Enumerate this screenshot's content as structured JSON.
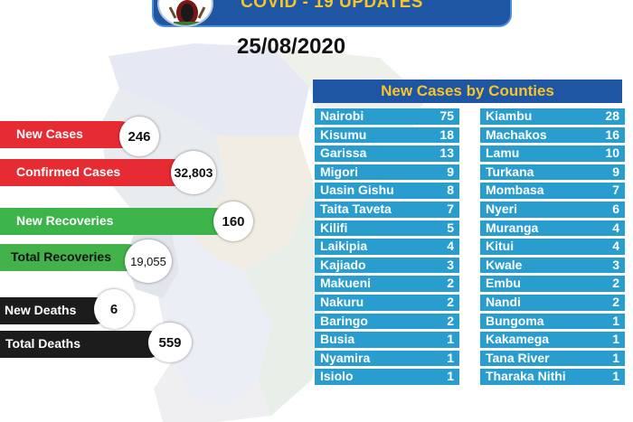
{
  "header": {
    "title": "COVID - 19 UPDATES",
    "date": "25/08/2020"
  },
  "stats": [
    {
      "label": "New Cases",
      "value": "246"
    },
    {
      "label": "Confirmed Cases",
      "value": "32,803"
    },
    {
      "label": "New Recoveries",
      "value": "160"
    },
    {
      "label": "Total Recoveries",
      "value": "19,055"
    },
    {
      "label": "New Deaths",
      "value": "6"
    },
    {
      "label": "Total Deaths",
      "value": "559"
    }
  ],
  "counties": {
    "title": "New Cases by Counties",
    "left": [
      {
        "name": "Nairobi",
        "cases": "75"
      },
      {
        "name": "Kisumu",
        "cases": "18"
      },
      {
        "name": "Garissa",
        "cases": "13"
      },
      {
        "name": "Migori",
        "cases": "9"
      },
      {
        "name": "Uasin Gishu",
        "cases": "8"
      },
      {
        "name": "Taita Taveta",
        "cases": "7"
      },
      {
        "name": "Kilifi",
        "cases": "5"
      },
      {
        "name": "Laikipia",
        "cases": "4"
      },
      {
        "name": "Kajiado",
        "cases": "3"
      },
      {
        "name": "Makueni",
        "cases": "2"
      },
      {
        "name": "Nakuru",
        "cases": "2"
      },
      {
        "name": "Baringo",
        "cases": "2"
      },
      {
        "name": "Busia",
        "cases": "1"
      },
      {
        "name": "Nyamira",
        "cases": "1"
      },
      {
        "name": "Isiolo",
        "cases": "1"
      }
    ],
    "right": [
      {
        "name": "Kiambu",
        "cases": "28"
      },
      {
        "name": "Machakos",
        "cases": "16"
      },
      {
        "name": "Lamu",
        "cases": "10"
      },
      {
        "name": "Turkana",
        "cases": "9"
      },
      {
        "name": "Mombasa",
        "cases": "7"
      },
      {
        "name": "Nyeri",
        "cases": "6"
      },
      {
        "name": "Muranga",
        "cases": "4"
      },
      {
        "name": "Kitui",
        "cases": "4"
      },
      {
        "name": "Kwale",
        "cases": "3"
      },
      {
        "name": "Embu",
        "cases": "2"
      },
      {
        "name": "Nandi",
        "cases": "2"
      },
      {
        "name": "Bungoma",
        "cases": "1"
      },
      {
        "name": "Kakamega",
        "cases": "1"
      },
      {
        "name": "Tana River",
        "cases": "1"
      },
      {
        "name": "Tharaka Nithi",
        "cases": "1"
      }
    ]
  }
}
